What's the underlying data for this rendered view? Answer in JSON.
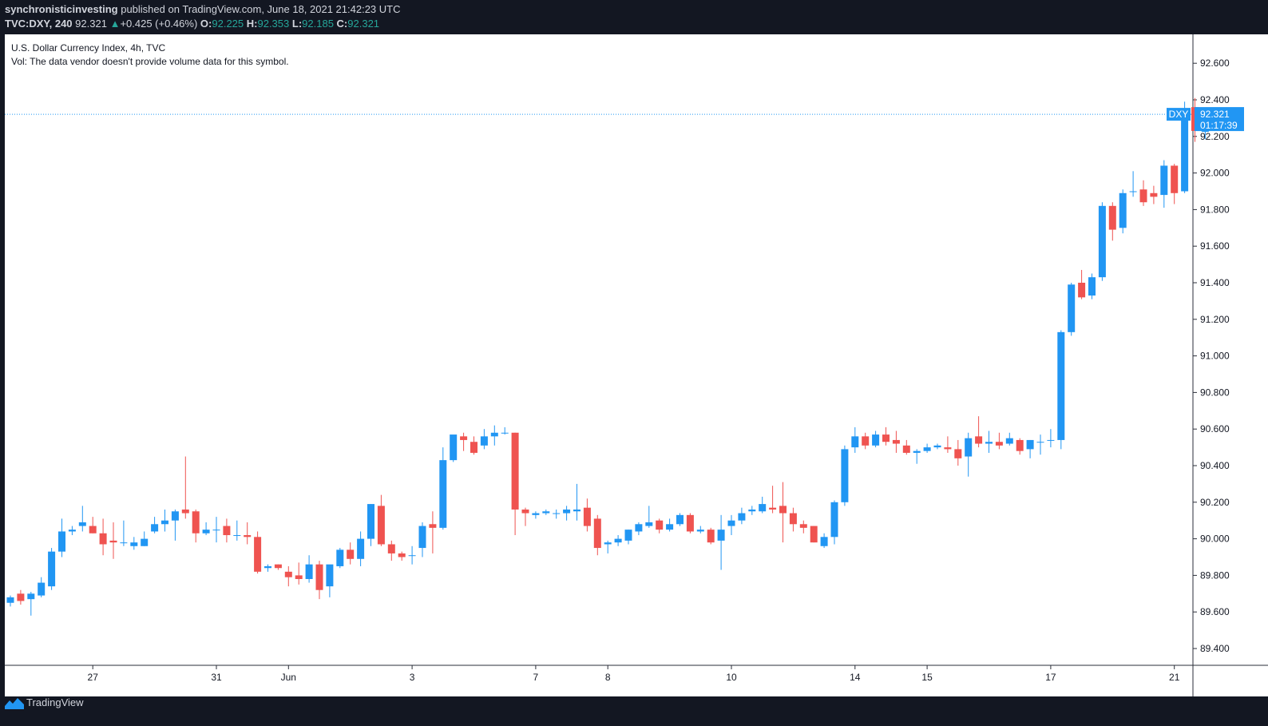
{
  "header": {
    "author": "synchronisticinvesting",
    "published": "published on TradingView.com, June 18, 2021 21:42:23 UTC",
    "symbol": "TVC:DXY, 240",
    "last": "92.321",
    "change": "+0.425 (+0.46%)",
    "o_label": "O:",
    "o": "92.225",
    "h_label": "H:",
    "h": "92.353",
    "l_label": "L:",
    "l": "92.185",
    "c_label": "C:",
    "c": "92.321"
  },
  "legend": {
    "title": "U.S. Dollar Currency Index, 4h, TVC",
    "vol": "Vol: The data vendor doesn't provide volume data for this symbol."
  },
  "price_label": {
    "symbol": "DXY",
    "price": "92.321",
    "countdown": "01:17:39"
  },
  "footer": {
    "brand": "TradingView"
  },
  "colors": {
    "up": "#2196f3",
    "down": "#ef5350",
    "background": "#131722",
    "chart_bg": "#ffffff",
    "label": "#2196f3"
  },
  "chart_data": {
    "type": "candlestick",
    "title": "U.S. Dollar Currency Index, 4h, TVC",
    "ylim": [
      89.3,
      92.7
    ],
    "yticks": [
      89.4,
      89.6,
      89.8,
      90.0,
      90.2,
      90.4,
      90.6,
      90.8,
      91.0,
      91.2,
      91.4,
      91.6,
      91.8,
      92.0,
      92.2,
      92.4,
      92.6
    ],
    "ytick_labels": [
      "89.400",
      "89.600",
      "89.800",
      "90.000",
      "90.200",
      "90.400",
      "90.600",
      "90.800",
      "91.000",
      "91.200",
      "91.400",
      "91.600",
      "91.800",
      "92.000",
      "92.200",
      "92.400",
      "92.600"
    ],
    "xtick_labels": [
      {
        "label": "27",
        "index": 8
      },
      {
        "label": "31",
        "index": 20
      },
      {
        "label": "Jun",
        "index": 27
      },
      {
        "label": "3",
        "index": 39
      },
      {
        "label": "7",
        "index": 51
      },
      {
        "label": "8",
        "index": 58
      },
      {
        "label": "10",
        "index": 70
      },
      {
        "label": "14",
        "index": 82
      },
      {
        "label": "15",
        "index": 89
      },
      {
        "label": "17",
        "index": 101
      },
      {
        "label": "21",
        "index": 113
      }
    ],
    "last_price": 92.321,
    "candles": [
      [
        89.65,
        89.69,
        89.63,
        89.68
      ],
      [
        89.7,
        89.72,
        89.64,
        89.66
      ],
      [
        89.67,
        89.71,
        89.58,
        89.7
      ],
      [
        89.69,
        89.79,
        89.68,
        89.76
      ],
      [
        89.74,
        89.95,
        89.72,
        89.93
      ],
      [
        89.93,
        90.11,
        89.9,
        90.04
      ],
      [
        90.04,
        90.07,
        90.02,
        90.05
      ],
      [
        90.07,
        90.18,
        90.04,
        90.09
      ],
      [
        90.07,
        90.12,
        90.03,
        90.03
      ],
      [
        90.03,
        90.11,
        89.91,
        89.97
      ],
      [
        89.99,
        90.09,
        89.89,
        89.98
      ],
      [
        89.98,
        90.1,
        89.96,
        89.98
      ],
      [
        89.96,
        90.01,
        89.94,
        89.98
      ],
      [
        89.96,
        90.04,
        89.96,
        90.0
      ],
      [
        90.04,
        90.12,
        90.03,
        90.08
      ],
      [
        90.08,
        90.16,
        90.04,
        90.1
      ],
      [
        90.1,
        90.16,
        89.99,
        90.15
      ],
      [
        90.16,
        90.45,
        90.11,
        90.14
      ],
      [
        90.15,
        90.16,
        89.98,
        90.03
      ],
      [
        90.03,
        90.09,
        90.02,
        90.05
      ],
      [
        90.05,
        90.12,
        89.98,
        90.05
      ],
      [
        90.07,
        90.11,
        89.98,
        90.02
      ],
      [
        90.02,
        90.1,
        89.99,
        90.02
      ],
      [
        90.02,
        90.09,
        89.97,
        90.01
      ],
      [
        90.01,
        90.04,
        89.81,
        89.82
      ],
      [
        89.84,
        89.86,
        89.82,
        89.85
      ],
      [
        89.86,
        89.86,
        89.83,
        89.84
      ],
      [
        89.82,
        89.85,
        89.74,
        89.79
      ],
      [
        89.8,
        89.87,
        89.75,
        89.78
      ],
      [
        89.78,
        89.91,
        89.76,
        89.86
      ],
      [
        89.86,
        89.88,
        89.67,
        89.72
      ],
      [
        89.74,
        89.84,
        89.68,
        89.86
      ],
      [
        89.85,
        89.95,
        89.84,
        89.94
      ],
      [
        89.94,
        89.98,
        89.86,
        89.89
      ],
      [
        89.89,
        90.04,
        89.85,
        90.0
      ],
      [
        90.0,
        90.19,
        89.96,
        90.19
      ],
      [
        90.18,
        90.24,
        89.96,
        89.97
      ],
      [
        89.97,
        89.99,
        89.88,
        89.92
      ],
      [
        89.92,
        89.93,
        89.88,
        89.9
      ],
      [
        89.91,
        89.96,
        89.86,
        89.91
      ],
      [
        89.95,
        90.09,
        89.9,
        90.07
      ],
      [
        90.08,
        90.15,
        89.92,
        90.06
      ],
      [
        90.06,
        90.5,
        90.05,
        90.43
      ],
      [
        90.43,
        90.56,
        90.42,
        90.57
      ],
      [
        90.56,
        90.58,
        90.48,
        90.54
      ],
      [
        90.53,
        90.56,
        90.46,
        90.47
      ],
      [
        90.51,
        90.6,
        90.49,
        90.56
      ],
      [
        90.56,
        90.62,
        90.51,
        90.58
      ],
      [
        90.58,
        90.61,
        90.57,
        90.58
      ],
      [
        90.58,
        90.58,
        90.02,
        90.16
      ],
      [
        90.16,
        90.17,
        90.07,
        90.14
      ],
      [
        90.13,
        90.15,
        90.11,
        90.14
      ],
      [
        90.14,
        90.16,
        90.13,
        90.15
      ],
      [
        90.14,
        90.16,
        90.11,
        90.14
      ],
      [
        90.14,
        90.18,
        90.1,
        90.16
      ],
      [
        90.15,
        90.3,
        90.1,
        90.16
      ],
      [
        90.17,
        90.22,
        90.04,
        90.07
      ],
      [
        90.11,
        90.13,
        89.91,
        89.95
      ],
      [
        89.97,
        89.99,
        89.92,
        89.98
      ],
      [
        89.98,
        90.02,
        89.96,
        90.0
      ],
      [
        89.99,
        90.05,
        89.97,
        90.05
      ],
      [
        90.04,
        90.09,
        90.02,
        90.08
      ],
      [
        90.07,
        90.18,
        90.06,
        90.09
      ],
      [
        90.1,
        90.11,
        90.03,
        90.05
      ],
      [
        90.05,
        90.11,
        90.04,
        90.08
      ],
      [
        90.08,
        90.14,
        90.07,
        90.13
      ],
      [
        90.13,
        90.14,
        90.03,
        90.04
      ],
      [
        90.04,
        90.07,
        90.03,
        90.05
      ],
      [
        90.05,
        90.06,
        89.97,
        89.98
      ],
      [
        89.99,
        90.13,
        89.83,
        90.05
      ],
      [
        90.07,
        90.13,
        90.02,
        90.1
      ],
      [
        90.1,
        90.17,
        90.08,
        90.14
      ],
      [
        90.15,
        90.18,
        90.13,
        90.16
      ],
      [
        90.15,
        90.23,
        90.14,
        90.19
      ],
      [
        90.17,
        90.29,
        90.14,
        90.16
      ],
      [
        90.18,
        90.31,
        89.98,
        90.14
      ],
      [
        90.14,
        90.17,
        90.04,
        90.08
      ],
      [
        90.08,
        90.1,
        90.03,
        90.06
      ],
      [
        90.07,
        90.07,
        89.98,
        89.98
      ],
      [
        89.96,
        90.03,
        89.95,
        90.01
      ],
      [
        90.01,
        90.21,
        89.97,
        90.2
      ],
      [
        90.2,
        90.51,
        90.18,
        90.49
      ],
      [
        90.5,
        90.61,
        90.47,
        90.56
      ],
      [
        90.56,
        90.58,
        90.49,
        90.51
      ],
      [
        90.51,
        90.59,
        90.5,
        90.57
      ],
      [
        90.57,
        90.61,
        90.51,
        90.53
      ],
      [
        90.54,
        90.59,
        90.47,
        90.52
      ],
      [
        90.51,
        90.54,
        90.46,
        90.47
      ],
      [
        90.47,
        90.49,
        90.41,
        90.48
      ],
      [
        90.48,
        90.52,
        90.47,
        90.5
      ],
      [
        90.5,
        90.52,
        90.49,
        90.51
      ],
      [
        90.5,
        90.56,
        90.47,
        90.49
      ],
      [
        90.49,
        90.54,
        90.4,
        90.44
      ],
      [
        90.45,
        90.58,
        90.34,
        90.55
      ],
      [
        90.56,
        90.67,
        90.5,
        90.52
      ],
      [
        90.52,
        90.59,
        90.47,
        90.53
      ],
      [
        90.53,
        90.58,
        90.49,
        90.51
      ],
      [
        90.52,
        90.58,
        90.51,
        90.55
      ],
      [
        90.54,
        90.55,
        90.46,
        90.48
      ],
      [
        90.49,
        90.54,
        90.44,
        90.54
      ],
      [
        90.53,
        90.57,
        90.46,
        90.53
      ],
      [
        90.54,
        90.6,
        90.5,
        90.54
      ],
      [
        90.54,
        91.14,
        90.49,
        91.13
      ],
      [
        91.13,
        91.4,
        91.11,
        91.39
      ],
      [
        91.4,
        91.47,
        91.31,
        91.32
      ],
      [
        91.33,
        91.45,
        91.31,
        91.43
      ],
      [
        91.43,
        91.84,
        91.41,
        91.82
      ],
      [
        91.82,
        91.84,
        91.63,
        91.69
      ],
      [
        91.7,
        91.91,
        91.67,
        91.89
      ],
      [
        91.9,
        92.01,
        91.87,
        91.9
      ],
      [
        91.91,
        91.96,
        91.82,
        91.84
      ],
      [
        91.89,
        91.93,
        91.83,
        91.87
      ],
      [
        91.88,
        92.07,
        91.81,
        92.04
      ],
      [
        92.04,
        92.05,
        91.83,
        91.89
      ],
      [
        91.9,
        92.39,
        91.89,
        92.35
      ],
      [
        92.36,
        92.41,
        92.17,
        92.23
      ],
      [
        92.225,
        92.353,
        92.185,
        92.321
      ]
    ]
  }
}
